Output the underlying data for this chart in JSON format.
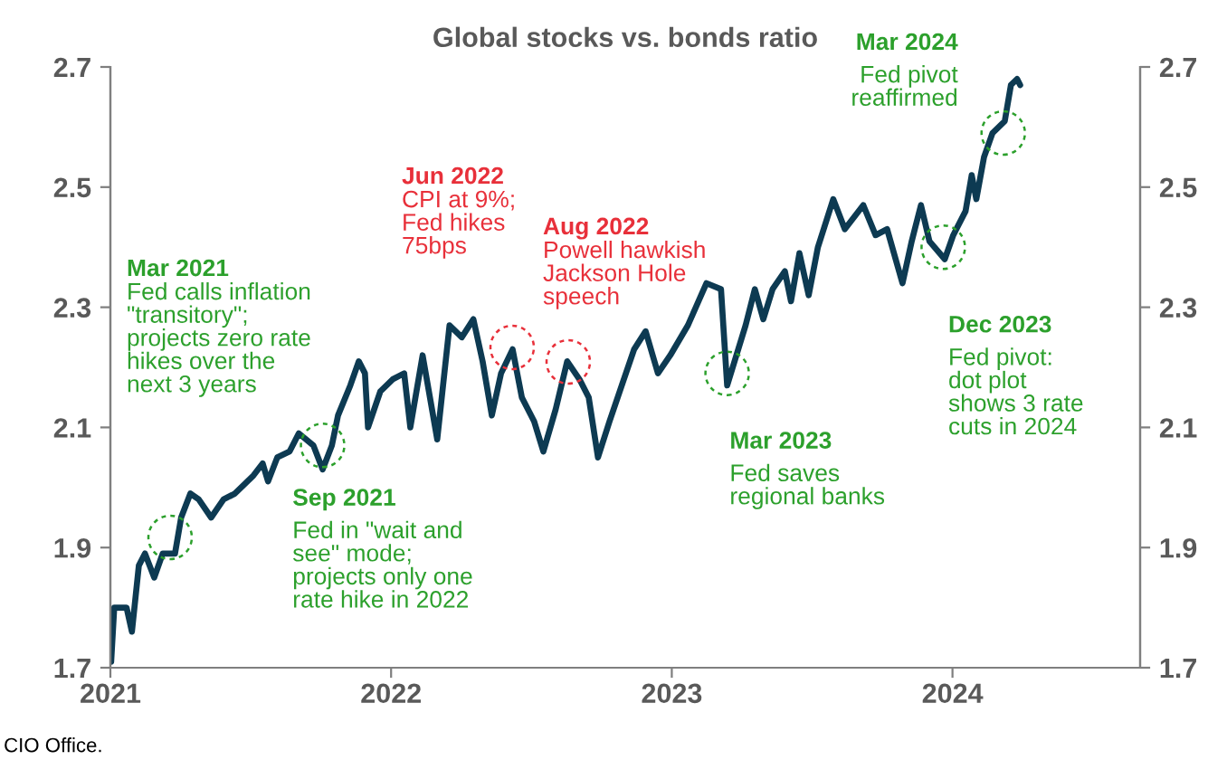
{
  "chart_data": {
    "type": "line",
    "title": "Global stocks vs. bonds ratio",
    "x": [
      "2021-01-02",
      "2021-01-06",
      "2021-01-22",
      "2021-01-29",
      "2021-02-07",
      "2021-02-15",
      "2021-02-27",
      "2021-03-10",
      "2021-03-26",
      "2021-04-03",
      "2021-04-15",
      "2021-04-26",
      "2021-05-12",
      "2021-05-28",
      "2021-06-12",
      "2021-07-06",
      "2021-07-18",
      "2021-07-25",
      "2021-08-06",
      "2021-08-22",
      "2021-09-03",
      "2021-09-22",
      "2021-10-04",
      "2021-10-16",
      "2021-10-24",
      "2021-11-09",
      "2021-11-20",
      "2021-11-28",
      "2021-12-02",
      "2021-12-18",
      "2022-01-03",
      "2022-01-18",
      "2022-01-26",
      "2022-02-11",
      "2022-03-02",
      "2022-03-18",
      "2022-04-03",
      "2022-04-18",
      "2022-04-30",
      "2022-05-12",
      "2022-05-24",
      "2022-06-08",
      "2022-06-20",
      "2022-07-06",
      "2022-07-18",
      "2022-08-03",
      "2022-08-18",
      "2022-09-03",
      "2022-09-15",
      "2022-09-27",
      "2022-10-12",
      "2022-10-28",
      "2022-11-13",
      "2022-11-28",
      "2022-12-14",
      "2022-12-30",
      "2023-01-22",
      "2023-02-15",
      "2023-03-06",
      "2023-03-14",
      "2023-03-26",
      "2023-04-07",
      "2023-04-19",
      "2023-04-30",
      "2023-05-12",
      "2023-05-28",
      "2023-06-05",
      "2023-06-16",
      "2023-06-28",
      "2023-07-10",
      "2023-07-30",
      "2023-08-14",
      "2023-09-07",
      "2023-09-23",
      "2023-10-08",
      "2023-10-28",
      "2023-11-09",
      "2023-11-21",
      "2023-12-02",
      "2023-12-22",
      "2024-01-02",
      "2024-01-18",
      "2024-01-26",
      "2024-02-01",
      "2024-02-11",
      "2024-02-22",
      "2024-03-09",
      "2024-03-17",
      "2024-03-25",
      "2024-03-29"
    ],
    "series": [
      {
        "color": "#0d3a52",
        "values": [
          1.71,
          1.8,
          1.8,
          1.76,
          1.87,
          1.89,
          1.85,
          1.89,
          1.89,
          1.95,
          1.99,
          1.98,
          1.95,
          1.98,
          1.99,
          2.02,
          2.04,
          2.01,
          2.05,
          2.06,
          2.09,
          2.07,
          2.03,
          2.07,
          2.12,
          2.17,
          2.21,
          2.19,
          2.1,
          2.16,
          2.18,
          2.19,
          2.1,
          2.22,
          2.08,
          2.27,
          2.25,
          2.28,
          2.21,
          2.12,
          2.19,
          2.23,
          2.15,
          2.11,
          2.06,
          2.13,
          2.21,
          2.18,
          2.15,
          2.05,
          2.11,
          2.17,
          2.23,
          2.26,
          2.19,
          2.22,
          2.27,
          2.34,
          2.33,
          2.17,
          2.22,
          2.27,
          2.33,
          2.28,
          2.33,
          2.36,
          2.31,
          2.39,
          2.32,
          2.4,
          2.48,
          2.43,
          2.47,
          2.42,
          2.43,
          2.34,
          2.41,
          2.47,
          2.41,
          2.38,
          2.42,
          2.46,
          2.52,
          2.48,
          2.55,
          2.59,
          2.61,
          2.67,
          2.68,
          2.67
        ]
      }
    ],
    "xlim": [
      "2021-01-01",
      "2024-09-01"
    ],
    "xticks": [
      "2021",
      "2022",
      "2023",
      "2024"
    ],
    "ylim": [
      1.7,
      2.7
    ],
    "yticks": [
      1.7,
      1.9,
      2.1,
      2.3,
      2.5,
      2.7
    ],
    "y2lim": [
      1.7,
      2.7
    ],
    "y2ticks": [
      1.7,
      1.9,
      2.1,
      2.3,
      2.5,
      2.7
    ],
    "grid": false,
    "legend": false,
    "marker": "none",
    "line_style": "solid",
    "annotations": [
      "Mar 2021\nFed calls inflation\n\"transitory\";\nprojects zero rate\nhikes over the\nnext 3 years",
      {
        "text": "Sep 2021\nFed in \"wait and\nsee\" mode;\nprojects only one\nrate hike in 2022",
        "x": "2021-10-04",
        "y": 2.07
      },
      "Jun 2022\nCPI at 9%;\nFed hikes\n75bps",
      "Aug 2022\nPowell hawkish\nJackson Hole\nspeech",
      {
        "text": "Mar 2023\nFed saves\nregional banks",
        "x": "2023-03-14",
        "y": 2.19
      },
      {
        "text": "Dec 2023\nFed pivot:\ndot plot\nshows 3 rate\ncuts in 2024",
        "x": "2023-12-20",
        "y": 2.4
      },
      {
        "text": "Mar 2024\nFed pivot\nreaffirmed",
        "x": "2024-03-07",
        "y": 2.59
      },
      "CIO Office."
    ]
  }
}
